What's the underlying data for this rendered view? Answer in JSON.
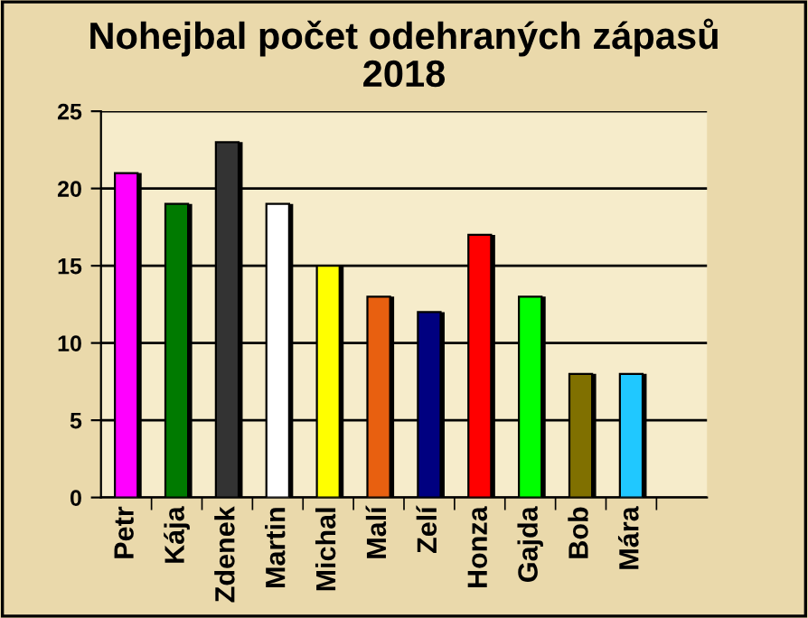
{
  "chart_data": {
    "type": "bar",
    "title": "Nohejbal počet odehraných zápasů\n2018",
    "categories": [
      "Petr",
      "Kája",
      "Zdenek",
      "Martin",
      "Michal",
      "Malí",
      "Zelí",
      "Honza",
      "Gajda",
      "Bob",
      "Mára",
      null
    ],
    "values": [
      21,
      19,
      23,
      19,
      15,
      13,
      12,
      17,
      13,
      8,
      8,
      null
    ],
    "colors": [
      "#ff00ff",
      "#007a00",
      "#333333",
      "#ffffff",
      "#ffff00",
      "#e86010",
      "#000080",
      "#ff0000",
      "#00ff00",
      "#807000",
      "#20c8ff",
      "#000000"
    ],
    "ylim": [
      0,
      25
    ],
    "yticks": [
      0,
      5,
      10,
      15,
      20,
      25
    ],
    "grid": "y",
    "legend": false
  }
}
